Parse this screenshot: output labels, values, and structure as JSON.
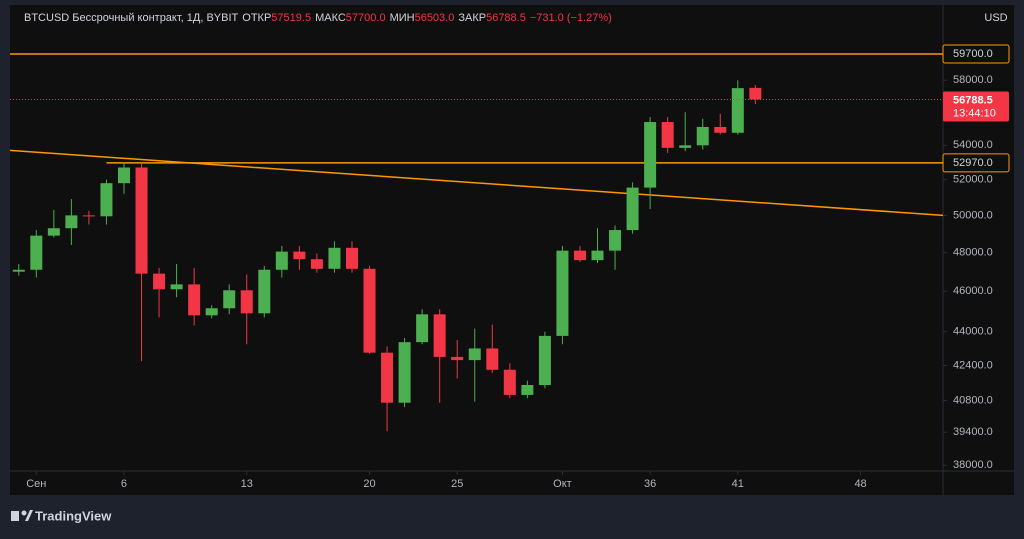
{
  "chart_data": {
    "type": "candlestick",
    "title": "BTCUSD Бессрочный контракт, 1Д, BYBIT",
    "ohlc_legend": [
      {
        "label": "ОТКР",
        "value": "57519.5"
      },
      {
        "label": "МАКС",
        "value": "57700.0"
      },
      {
        "label": "МИН",
        "value": "56503.0"
      },
      {
        "label": "ЗАКР",
        "value": "56788.5"
      }
    ],
    "change": "−731.0 (−1.27%)",
    "currency": "USD",
    "x": [
      0,
      1,
      2,
      3,
      4,
      5,
      6,
      7,
      8,
      9,
      10,
      11,
      12,
      13,
      14,
      15,
      16,
      17,
      18,
      19,
      20,
      21,
      22,
      23,
      24,
      25,
      26,
      27,
      28,
      29,
      30,
      31,
      32,
      33,
      34,
      35,
      36,
      37,
      38,
      39,
      40,
      41,
      42
    ],
    "open": [
      47000,
      47100,
      48900,
      49300,
      50000,
      49950,
      51800,
      52700,
      46900,
      46100,
      46350,
      44800,
      45150,
      46050,
      44900,
      47100,
      48050,
      47650,
      47150,
      48250,
      47150,
      43000,
      40700,
      43500,
      44850,
      42800,
      42650,
      43200,
      42200,
      41050,
      41500,
      43800,
      48100,
      47600,
      48100,
      49200,
      51550,
      55400,
      53850,
      54000,
      55100,
      54750,
      57519.5
    ],
    "high": [
      47400,
      49200,
      50300,
      50900,
      50250,
      52000,
      53000,
      52900,
      47200,
      47400,
      47200,
      45300,
      46350,
      46850,
      47300,
      48350,
      48350,
      47950,
      48600,
      48600,
      47300,
      43300,
      43700,
      45100,
      45100,
      43600,
      44150,
      44350,
      42500,
      41700,
      44000,
      48350,
      48350,
      49300,
      49450,
      51850,
      55700,
      55700,
      56000,
      55600,
      55900,
      58000,
      57700
    ],
    "low": [
      46800,
      46700,
      48800,
      48400,
      49500,
      49500,
      51200,
      42600,
      44700,
      45700,
      44300,
      44650,
      44850,
      43400,
      44700,
      46700,
      47100,
      46950,
      46950,
      46950,
      42950,
      39450,
      40500,
      43400,
      40700,
      41800,
      40750,
      42050,
      40900,
      40900,
      41350,
      43400,
      47500,
      47450,
      47100,
      49000,
      50350,
      53550,
      53650,
      53750,
      54650,
      54650,
      56503
    ],
    "close": [
      47100,
      48900,
      49300,
      50000,
      49950,
      51800,
      52700,
      46900,
      46100,
      46350,
      44800,
      45150,
      46050,
      44900,
      47100,
      48050,
      47650,
      47150,
      48250,
      47150,
      43000,
      40700,
      43500,
      44850,
      42800,
      42650,
      43200,
      42200,
      41050,
      41500,
      43800,
      48100,
      47600,
      48100,
      49200,
      51550,
      55400,
      53850,
      54000,
      55100,
      54750,
      57500,
      56788.5
    ],
    "up_color": "#4caf50",
    "down_color": "#f23645",
    "log_scale": true,
    "ylim": [
      37800,
      63000
    ],
    "yticks": [
      {
        "value": 38000,
        "label": "38000.0"
      },
      {
        "value": 39400,
        "label": "39400.0"
      },
      {
        "value": 40800,
        "label": "40800.0"
      },
      {
        "value": 42400,
        "label": "42400.0"
      },
      {
        "value": 44000,
        "label": "44000.0"
      },
      {
        "value": 46000,
        "label": "46000.0"
      },
      {
        "value": 48000,
        "label": "48000.0"
      },
      {
        "value": 50000,
        "label": "50000.0"
      },
      {
        "value": 52000,
        "label": "52000.0"
      },
      {
        "value": 54000,
        "label": "54000.0"
      },
      {
        "value": 58000,
        "label": "58000.0"
      }
    ],
    "xlim": [
      -0.5,
      52.7
    ],
    "xticks": [
      {
        "value": 1,
        "label": "Сен"
      },
      6,
      13,
      20,
      25,
      {
        "value": 31,
        "label": "Окт"
      },
      36,
      41,
      48
    ],
    "hlines": [
      {
        "value": 59700,
        "label": "59700.0",
        "color": "#ff9800"
      },
      {
        "value": 52970,
        "label": "52970.0",
        "color": "#ff9800",
        "x_start": 5
      }
    ],
    "trendline": {
      "x": [
        -0.5,
        52.7
      ],
      "y": [
        53700,
        50000
      ],
      "color": "#ff9800"
    },
    "last_price": {
      "value": 56788.5,
      "label": "56788.5",
      "countdown": "13:44:10"
    }
  },
  "footer": {
    "brand": "TradingView"
  }
}
